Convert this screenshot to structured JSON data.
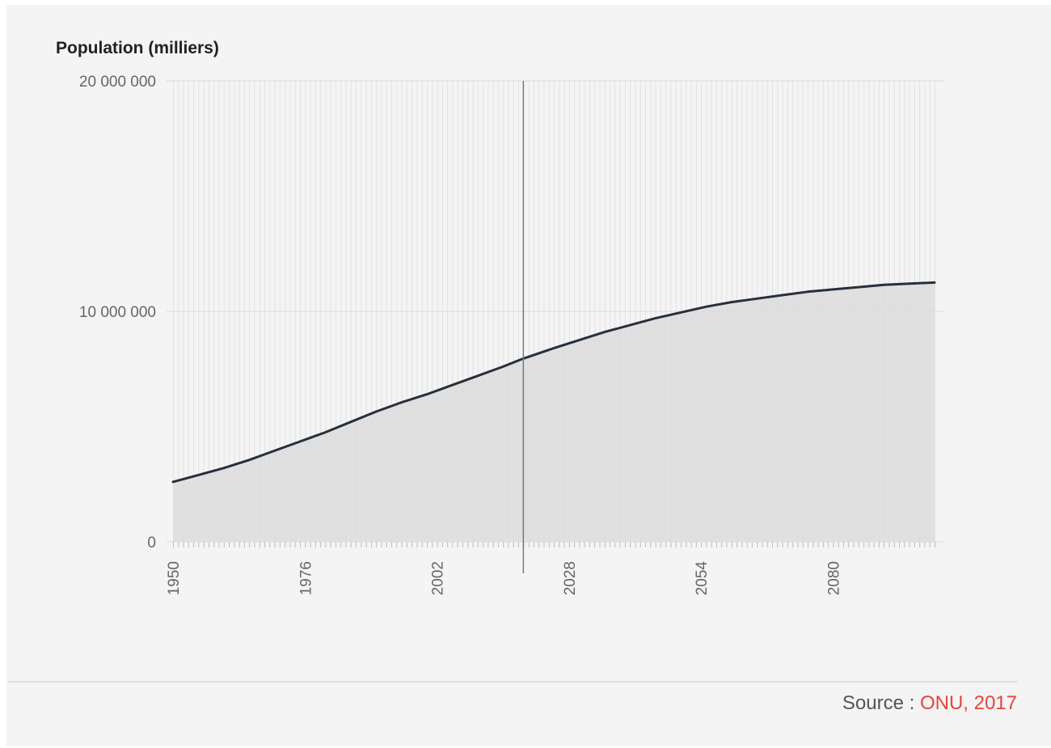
{
  "chart_data": {
    "type": "area",
    "ylabel": "Population (milliers)",
    "ylim": [
      0,
      20000000
    ],
    "yticks": [
      {
        "value": 0,
        "label": "0"
      },
      {
        "value": 10000000,
        "label": "10 000 000"
      },
      {
        "value": 20000000,
        "label": "20 000 000"
      }
    ],
    "xlim": [
      1950,
      2100
    ],
    "xticks": [
      "1950",
      "1976",
      "2002",
      "2028",
      "2054",
      "2080"
    ],
    "grid": {
      "vertical_minor_per_year": true,
      "horizontal": true
    },
    "marker_year": 2019,
    "series": [
      {
        "x": [
          1950,
          1955,
          1960,
          1965,
          1970,
          1975,
          1980,
          1985,
          1990,
          1995,
          2000,
          2005,
          2010,
          2015,
          2019,
          2025,
          2030,
          2035,
          2040,
          2045,
          2050,
          2055,
          2060,
          2065,
          2070,
          2075,
          2080,
          2085,
          2090,
          2095,
          2100
        ],
        "values": [
          2600000,
          2900000,
          3200000,
          3550000,
          3950000,
          4350000,
          4750000,
          5200000,
          5650000,
          6050000,
          6400000,
          6800000,
          7200000,
          7600000,
          7950000,
          8400000,
          8750000,
          9100000,
          9400000,
          9700000,
          9950000,
          10200000,
          10400000,
          10550000,
          10700000,
          10850000,
          10950000,
          11050000,
          11150000,
          11200000,
          11250000
        ]
      }
    ],
    "colors": {
      "line": "#27303a",
      "area_fill": "#dcdcdd",
      "marker_line": "#7a7a7a",
      "grid": "#e2e2e2"
    }
  },
  "footer": {
    "source_label": "Source : ",
    "source_link_text": "ONU, 2017",
    "link_color": "#e8443a"
  }
}
